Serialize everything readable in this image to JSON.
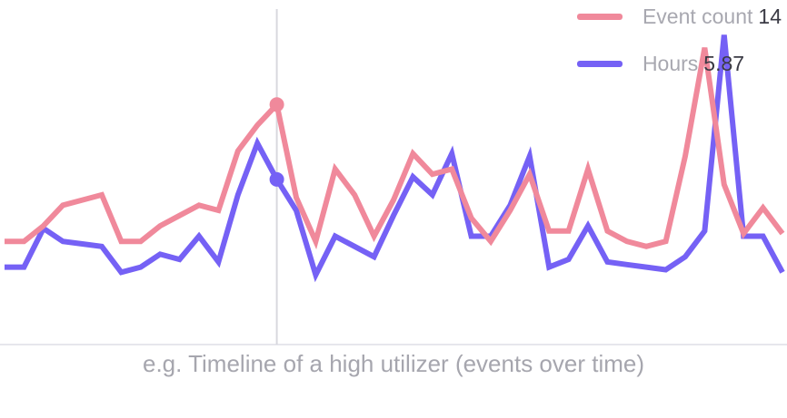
{
  "caption": "e.g. Timeline of a high utilizer (events over time)",
  "legend": [
    {
      "label": "Event count",
      "value": "14",
      "color": "#f0899b"
    },
    {
      "label": "Hours",
      "value": "5.87",
      "color": "#7561f5"
    }
  ],
  "chart_data": {
    "type": "line",
    "x": [
      0,
      1,
      2,
      3,
      4,
      5,
      6,
      7,
      8,
      9,
      10,
      11,
      12,
      13,
      14,
      15,
      16,
      17,
      18,
      19,
      20,
      21,
      22,
      23,
      24,
      25,
      26,
      27,
      28,
      29,
      30,
      31,
      32,
      33,
      34,
      35,
      36,
      37,
      38,
      39,
      40
    ],
    "series": [
      {
        "name": "Event count",
        "color": "#f0899b",
        "values": [
          1.0,
          1.0,
          1.6,
          2.4,
          2.6,
          2.8,
          1.0,
          1.0,
          1.6,
          2.0,
          2.4,
          2.2,
          4.5,
          5.5,
          6.3,
          2.7,
          1.0,
          3.8,
          2.8,
          1.2,
          2.6,
          4.4,
          3.6,
          3.8,
          1.9,
          1.0,
          2.2,
          3.6,
          1.4,
          1.4,
          3.8,
          1.4,
          1.0,
          0.8,
          1.0,
          4.3,
          8.5,
          3.2,
          1.3,
          2.3,
          1.3
        ]
      },
      {
        "name": "Hours",
        "color": "#7561f5",
        "values": [
          0.0,
          0.0,
          1.5,
          1.0,
          0.9,
          0.8,
          -0.2,
          0.0,
          0.5,
          0.3,
          1.2,
          0.2,
          2.8,
          4.8,
          3.4,
          2.2,
          -0.3,
          1.2,
          0.8,
          0.4,
          2.0,
          3.5,
          2.8,
          4.4,
          1.2,
          1.2,
          2.4,
          4.3,
          0.0,
          0.3,
          1.6,
          0.2,
          0.1,
          0.0,
          -0.1,
          0.4,
          1.4,
          9.0,
          1.2,
          1.2,
          -0.2
        ]
      }
    ],
    "hover_index": 14,
    "ylim": [
      -3,
      10
    ],
    "grid": false,
    "legend_position": "top-right"
  }
}
